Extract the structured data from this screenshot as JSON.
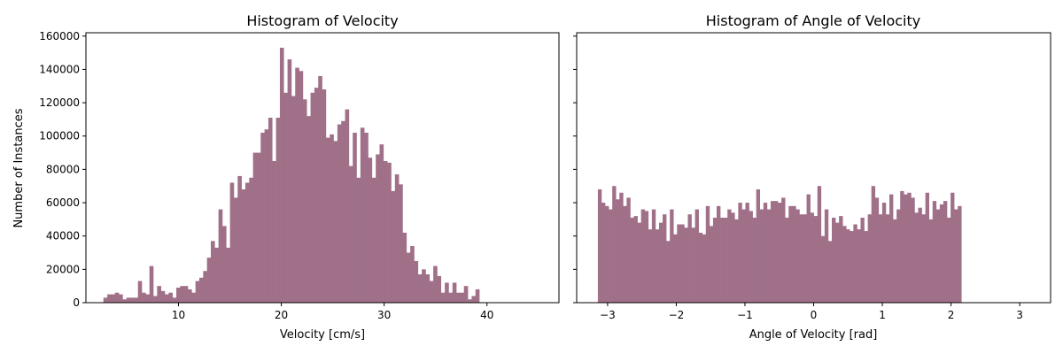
{
  "bar_color": "#a07089",
  "chart_data": [
    {
      "type": "bar",
      "title": "Histogram of Velocity",
      "xlabel": "Velocity [cm/s]",
      "ylabel": "Number of Instances",
      "xlim": [
        1,
        47
      ],
      "ylim": [
        0,
        162000
      ],
      "xticks": [
        10,
        20,
        30,
        40
      ],
      "yticks": [
        0,
        20000,
        40000,
        60000,
        80000,
        100000,
        120000,
        140000,
        160000
      ],
      "bin_start": 2.7,
      "bin_width": 0.373,
      "values": [
        3000,
        5000,
        5000,
        6000,
        5000,
        2000,
        3000,
        3000,
        3000,
        13000,
        6000,
        5000,
        22000,
        4000,
        10000,
        7000,
        5000,
        6000,
        3000,
        9000,
        10000,
        10000,
        8000,
        6000,
        13000,
        15000,
        19000,
        27000,
        37000,
        33000,
        56000,
        46000,
        33000,
        72000,
        63000,
        76000,
        68000,
        72000,
        75000,
        90000,
        90000,
        102000,
        104000,
        111000,
        85000,
        111000,
        153000,
        126000,
        146000,
        124000,
        141000,
        139000,
        122000,
        112000,
        126000,
        129000,
        136000,
        128000,
        99000,
        101000,
        97000,
        107000,
        109000,
        116000,
        82000,
        102000,
        75000,
        105000,
        102000,
        87000,
        75000,
        89000,
        95000,
        85000,
        84000,
        67000,
        77000,
        71000,
        42000,
        30000,
        34000,
        25000,
        17000,
        20000,
        17000,
        13000,
        22000,
        16000,
        6000,
        12000,
        6000,
        12000,
        6000,
        6000,
        10000,
        2000,
        4000,
        8000
      ]
    },
    {
      "type": "bar",
      "title": "Histogram of Angle of Velocity",
      "xlabel": "Angle of Velocity [rad]",
      "ylabel": "",
      "xlim": [
        -3.45,
        3.45
      ],
      "ylim": [
        0,
        162000
      ],
      "xticks": [
        -3,
        -2,
        -1,
        0,
        1,
        2,
        3
      ],
      "yticks": [
        0,
        20000,
        40000,
        60000,
        80000,
        100000,
        120000,
        140000,
        160000
      ],
      "bin_start": -3.1416,
      "bin_width": 0.0524,
      "values": [
        68000,
        60000,
        58000,
        56000,
        70000,
        62000,
        66000,
        58000,
        63000,
        51000,
        52000,
        48000,
        56000,
        55000,
        44000,
        56000,
        44000,
        48000,
        53000,
        37000,
        56000,
        41000,
        47000,
        47000,
        45000,
        53000,
        45000,
        56000,
        42000,
        41000,
        58000,
        46000,
        51000,
        58000,
        51000,
        51000,
        56000,
        54000,
        50000,
        60000,
        56000,
        60000,
        55000,
        51000,
        68000,
        56000,
        60000,
        56000,
        61000,
        61000,
        60000,
        63000,
        51000,
        58000,
        58000,
        56000,
        53000,
        53000,
        65000,
        54000,
        52000,
        70000,
        40000,
        56000,
        37000,
        51000,
        48000,
        52000,
        46000,
        44000,
        43000,
        47000,
        44000,
        51000,
        43000,
        53000,
        70000,
        63000,
        53000,
        60000,
        53000,
        65000,
        50000,
        56000,
        67000,
        65000,
        66000,
        63000,
        54000,
        57000,
        53000,
        66000,
        50000,
        61000,
        56000,
        59000,
        61000,
        51000,
        66000,
        56000,
        58000
      ]
    }
  ]
}
